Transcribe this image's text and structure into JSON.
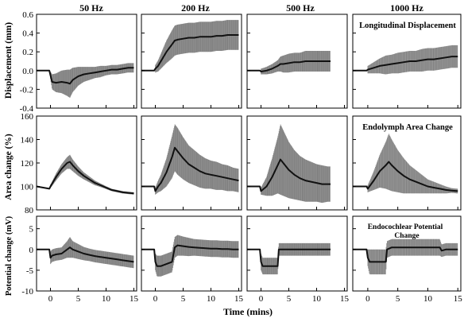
{
  "column_titles": [
    "50 Hz",
    "200 Hz",
    "500 Hz",
    "1000 Hz"
  ],
  "row_ylabels": [
    "Displacement (mm)",
    "Area change (%)",
    "Potential change (mV)"
  ],
  "xlabel": "Time (mins)",
  "annotations": {
    "row0": "Longitudinal Displacement",
    "row1": "Endolymph Area Change",
    "row2_line1": "Endocochlear Potential",
    "row2_line2": "Change"
  },
  "colors": {
    "mean_line": "#111111",
    "error_band": "#5a5a5a",
    "axis": "#000000"
  },
  "chart_data": {
    "type": "line",
    "layout": "3 rows x 4 columns small multiples with shaded error bars",
    "x_range": [
      -2.5,
      15.5
    ],
    "x_ticks": [
      0,
      5,
      10,
      15
    ],
    "x_tick_labels": [
      "0",
      "5",
      "10",
      "15"
    ],
    "rows": [
      {
        "ylim": [
          -0.4,
          0.6
        ],
        "yticks": [
          -0.4,
          -0.2,
          0.0,
          0.2,
          0.4,
          0.6
        ],
        "ytick_labels": [
          "-0.4",
          "-0.2",
          "0.0",
          "0.2",
          "0.4",
          "0.6"
        ],
        "panels": [
          {
            "x": [
              -2.5,
              -0.2,
              0,
              0.3,
              1,
              2,
              3,
              3.5,
              4,
              5,
              6,
              7,
              8,
              9,
              10,
              11,
              12,
              13,
              14,
              15
            ],
            "y": [
              0,
              0,
              -0.05,
              -0.12,
              -0.13,
              -0.12,
              -0.13,
              -0.14,
              -0.1,
              -0.06,
              -0.04,
              -0.03,
              -0.02,
              -0.01,
              0.0,
              0.01,
              0.01,
              0.02,
              0.03,
              0.03
            ],
            "err": [
              0.02,
              0.02,
              0.04,
              0.08,
              0.1,
              0.12,
              0.14,
              0.15,
              0.13,
              0.1,
              0.08,
              0.07,
              0.06,
              0.06,
              0.05,
              0.05,
              0.05,
              0.05,
              0.05,
              0.05
            ]
          },
          {
            "x": [
              -2.5,
              -0.2,
              0,
              0.5,
              1,
              2,
              3,
              3.5,
              4,
              5,
              6,
              7,
              8,
              9,
              10,
              11,
              12,
              13,
              14,
              15
            ],
            "y": [
              0,
              0,
              0.02,
              0.05,
              0.1,
              0.2,
              0.28,
              0.32,
              0.33,
              0.34,
              0.35,
              0.35,
              0.36,
              0.36,
              0.36,
              0.37,
              0.37,
              0.38,
              0.38,
              0.38
            ],
            "err": [
              0.02,
              0.02,
              0.04,
              0.06,
              0.08,
              0.12,
              0.15,
              0.16,
              0.16,
              0.16,
              0.16,
              0.16,
              0.16,
              0.16,
              0.16,
              0.16,
              0.16,
              0.16,
              0.16,
              0.16
            ]
          },
          {
            "x": [
              -2.5,
              -0.2,
              0,
              1,
              2,
              3,
              3.5,
              4,
              5,
              6,
              7,
              8,
              9,
              10,
              11,
              12,
              12.5
            ],
            "y": [
              0,
              0,
              -0.01,
              0.0,
              0.02,
              0.05,
              0.07,
              0.07,
              0.08,
              0.09,
              0.09,
              0.1,
              0.1,
              0.1,
              0.1,
              0.1,
              0.1
            ],
            "err": [
              0.02,
              0.02,
              0.03,
              0.04,
              0.05,
              0.06,
              0.08,
              0.09,
              0.1,
              0.1,
              0.1,
              0.11,
              0.11,
              0.11,
              0.11,
              0.11,
              0.11
            ]
          },
          {
            "x": [
              -2.5,
              -0.2,
              0,
              1,
              2,
              3,
              4,
              5,
              6,
              7,
              8,
              9,
              10,
              11,
              12,
              13,
              14,
              15
            ],
            "y": [
              0,
              0,
              0.01,
              0.03,
              0.05,
              0.06,
              0.07,
              0.08,
              0.09,
              0.1,
              0.1,
              0.11,
              0.12,
              0.12,
              0.13,
              0.14,
              0.15,
              0.15
            ],
            "err": [
              0.02,
              0.02,
              0.04,
              0.06,
              0.08,
              0.1,
              0.1,
              0.11,
              0.11,
              0.11,
              0.11,
              0.12,
              0.12,
              0.12,
              0.12,
              0.12,
              0.12,
              0.12
            ]
          }
        ]
      },
      {
        "ylim": [
          80,
          160
        ],
        "yticks": [
          80,
          100,
          120,
          140,
          160
        ],
        "ytick_labels": [
          "80",
          "100",
          "120",
          "140",
          "160"
        ],
        "panels": [
          {
            "x": [
              -2.5,
              -0.2,
              0,
              1,
              2,
              3,
              3.5,
              4,
              5,
              6,
              7,
              8,
              9,
              10,
              11,
              12,
              13,
              14,
              15
            ],
            "y": [
              100,
              98,
              100,
              108,
              115,
              120,
              121,
              118,
              113,
              109,
              106,
              103,
              101,
              99,
              97,
              96,
              95,
              94.5,
              94
            ],
            "err": [
              1,
              1,
              1.5,
              3,
              4,
              5,
              6,
              5,
              4,
              3,
              2.5,
              2,
              1.5,
              1.2,
              1,
              1,
              1,
              1,
              1
            ]
          },
          {
            "x": [
              -2.5,
              -0.2,
              0,
              0.5,
              1,
              2,
              3,
              3.5,
              4,
              5,
              6,
              7,
              8,
              9,
              10,
              11,
              12,
              13,
              14,
              15
            ],
            "y": [
              100,
              100,
              96,
              100,
              103,
              112,
              125,
              133,
              130,
              124,
              119,
              116,
              113,
              111,
              110,
              109,
              108,
              107,
              106,
              105
            ],
            "err": [
              1,
              1,
              3,
              5,
              7,
              12,
              18,
              20,
              20,
              18,
              16,
              15,
              14,
              13,
              12,
              12,
              11,
              11,
              10,
              10
            ]
          },
          {
            "x": [
              -2.5,
              -0.2,
              0,
              1,
              2,
              3,
              3.5,
              4,
              5,
              6,
              7,
              8,
              9,
              10,
              11,
              12,
              12.5
            ],
            "y": [
              100,
              100,
              96,
              100,
              108,
              118,
              123,
              120,
              114,
              110,
              107,
              105,
              104,
              103,
              102,
              102,
              102
            ],
            "err": [
              1,
              1,
              3,
              8,
              16,
              24,
              30,
              28,
              24,
              21,
              19,
              18,
              17,
              16,
              16,
              15,
              15
            ]
          },
          {
            "x": [
              -2.5,
              -0.2,
              0,
              1,
              2,
              3,
              3.5,
              4,
              5,
              6,
              7,
              8,
              9,
              10,
              11,
              12,
              13,
              14,
              15
            ],
            "y": [
              100,
              100,
              98,
              105,
              113,
              118,
              121,
              118,
              113,
              109,
              106,
              104,
              102,
              100,
              99,
              98,
              97,
              96.5,
              96
            ],
            "err": [
              1,
              1,
              3,
              8,
              14,
              20,
              24,
              22,
              18,
              15,
              12,
              10,
              8,
              6,
              5,
              4,
              3,
              2,
              2
            ]
          }
        ]
      },
      {
        "ylim": [
          -10,
          8
        ],
        "yticks": [
          -10,
          -5,
          0,
          5
        ],
        "ytick_labels": [
          "-10",
          "-5",
          "0",
          "5"
        ],
        "panels": [
          {
            "x": [
              -2.5,
              -0.2,
              0,
              0.3,
              1,
              2,
              3,
              3.5,
              4,
              5,
              6,
              7,
              8,
              9,
              10,
              11,
              12,
              13,
              14,
              15
            ],
            "y": [
              0,
              0,
              -2,
              -1.5,
              -1.2,
              -1,
              0,
              0.5,
              0,
              -0.5,
              -1,
              -1.3,
              -1.6,
              -1.8,
              -2,
              -2.2,
              -2.4,
              -2.6,
              -2.8,
              -3
            ],
            "err": [
              0.5,
              0.5,
              1.5,
              1.5,
              1.5,
              1.5,
              2,
              2.5,
              2,
              1.8,
              1.6,
              1.5,
              1.5,
              1.5,
              1.5,
              1.5,
              1.5,
              1.5,
              1.5,
              1.5
            ]
          },
          {
            "x": [
              -2.5,
              -0.2,
              0,
              0.3,
              1,
              2,
              3,
              3.5,
              4,
              5,
              6,
              7,
              8,
              9,
              10,
              11,
              12,
              13,
              14,
              15
            ],
            "y": [
              0,
              0,
              -3,
              -4,
              -4,
              -3.5,
              -3,
              0.5,
              1,
              0.8,
              0.6,
              0.5,
              0.4,
              0.3,
              0.2,
              0.2,
              0.1,
              0.1,
              0,
              0
            ],
            "err": [
              0.5,
              0.5,
              2,
              2.5,
              2.5,
              2.5,
              2.5,
              2.5,
              2.5,
              2.3,
              2.2,
              2,
              2,
              2,
              2,
              2,
              2,
              2,
              2,
              2
            ]
          },
          {
            "x": [
              -2.5,
              -0.2,
              0,
              0.3,
              1,
              2,
              3,
              3.2,
              4,
              5,
              6,
              7,
              8,
              9,
              10,
              11,
              12,
              12.5
            ],
            "y": [
              0,
              0,
              -3,
              -4,
              -4,
              -4,
              -4,
              0,
              0,
              0,
              0,
              0,
              0,
              0,
              0,
              0,
              0,
              0
            ],
            "err": [
              0.5,
              0.5,
              2,
              2,
              2,
              2,
              2,
              1.5,
              1.5,
              1.5,
              1.5,
              1.5,
              1.5,
              1.5,
              1.5,
              1.5,
              1.5,
              1.5
            ]
          },
          {
            "x": [
              -2.5,
              -0.2,
              0,
              0.3,
              1,
              2,
              3,
              3.2,
              4,
              5,
              6,
              7,
              8,
              9,
              10,
              11,
              12,
              12.3,
              13,
              14,
              15
            ],
            "y": [
              0,
              0,
              -2,
              -3,
              -3,
              -3,
              -3,
              0,
              0.5,
              0.5,
              0.5,
              0.5,
              0.5,
              0.5,
              0.5,
              0.5,
              0.5,
              -0.3,
              0,
              0,
              0
            ],
            "err": [
              0.5,
              0.5,
              2,
              3,
              3,
              3,
              3,
              2,
              2,
              2,
              2,
              2,
              2,
              2,
              2,
              2,
              2,
              1.5,
              1.5,
              1.5,
              1.5
            ]
          }
        ]
      }
    ]
  }
}
